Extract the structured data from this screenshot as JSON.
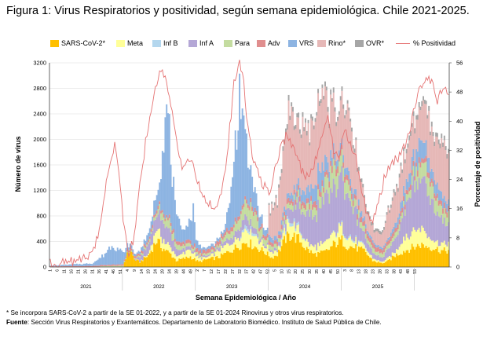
{
  "title": "Figura 1: Virus Respiratorios y positividad, según semana epidemiológica. Chile 2021-2025.",
  "legend": [
    {
      "key": "sars",
      "label": "SARS-CoV-2*",
      "color": "#ffc000"
    },
    {
      "key": "meta",
      "label": "Meta",
      "color": "#ffff99"
    },
    {
      "key": "infb",
      "label": "Inf B",
      "color": "#b4d7ee"
    },
    {
      "key": "infa",
      "label": "Inf A",
      "color": "#b4a7d6"
    },
    {
      "key": "para",
      "label": "Para",
      "color": "#c4dca0"
    },
    {
      "key": "adv",
      "label": "Adv",
      "color": "#e08e8e"
    },
    {
      "key": "vrs",
      "label": "VRS",
      "color": "#8db4e2"
    },
    {
      "key": "rino",
      "label": "Rino*",
      "color": "#e6b8b7"
    },
    {
      "key": "ovr",
      "label": "OVR*",
      "color": "#a6a6a6"
    },
    {
      "key": "pos",
      "label": "% Positividad",
      "color": "#e57373"
    }
  ],
  "notes": {
    "note1": "* Se incorpora SARS-CoV-2 a partir de la SE 01-2022, y a partir de la SE 01-2024 Rinovirus y otros virus respiratorios.",
    "source_label": "Fuente",
    "source_text": ": Sección Virus Respiratorios y Exantemáticos. Departamento de Laboratorio Biomédico. Instituto de Salud Pública de Chile."
  },
  "chart_data": {
    "type": "bar",
    "stacked": true,
    "xlabel": "Semana Epidemiológica / Año",
    "ylabel": "Número de virus",
    "y2label": "Porcentaje de positividad",
    "ylim": [
      0,
      3200
    ],
    "yticks": [
      0,
      400,
      800,
      1200,
      1600,
      2000,
      2400,
      2800,
      3200
    ],
    "y2lim": [
      0,
      56
    ],
    "y2ticks": [
      0,
      8,
      16,
      24,
      32,
      40,
      48,
      56
    ],
    "years": [
      "2021",
      "2022",
      "2023",
      "2024",
      "2025"
    ],
    "week_ticks": {
      "2021": [
        "1",
        "6",
        "11",
        "16",
        "21",
        "26",
        "31",
        "36",
        "41",
        "46",
        "51"
      ],
      "2022": [
        "4",
        "9",
        "14",
        "19",
        "24",
        "29",
        "34",
        "39",
        "44",
        "49"
      ],
      "2023": [
        "2",
        "7",
        "12",
        "17",
        "22",
        "27",
        "32",
        "37",
        "42",
        "47",
        "52"
      ],
      "2024": [
        "5",
        "10",
        "15",
        "20",
        "25",
        "30",
        "35",
        "40",
        "45",
        "50"
      ],
      "2025": [
        "3",
        "8",
        "13",
        "18",
        "23",
        "28",
        "33",
        "38",
        "43",
        "48",
        "53"
      ]
    },
    "series_order": [
      "sars",
      "meta",
      "infb",
      "infa",
      "para",
      "adv",
      "vrs",
      "rino",
      "ovr"
    ],
    "series_profiles": {
      "sars": [
        [
          0,
          0
        ],
        [
          52,
          0
        ],
        [
          54,
          150
        ],
        [
          57,
          280
        ],
        [
          60,
          120
        ],
        [
          64,
          80
        ],
        [
          70,
          180
        ],
        [
          76,
          420
        ],
        [
          80,
          300
        ],
        [
          86,
          200
        ],
        [
          90,
          100
        ],
        [
          100,
          160
        ],
        [
          106,
          80
        ],
        [
          112,
          120
        ],
        [
          120,
          150
        ],
        [
          124,
          200
        ],
        [
          132,
          300
        ],
        [
          140,
          400
        ],
        [
          146,
          320
        ],
        [
          152,
          250
        ],
        [
          158,
          150
        ],
        [
          162,
          200
        ],
        [
          168,
          450
        ],
        [
          172,
          500
        ],
        [
          178,
          420
        ],
        [
          182,
          300
        ],
        [
          188,
          200
        ],
        [
          194,
          220
        ],
        [
          198,
          260
        ],
        [
          202,
          350
        ],
        [
          208,
          420
        ],
        [
          212,
          330
        ],
        [
          218,
          300
        ],
        [
          224,
          250
        ],
        [
          230,
          100
        ],
        [
          236,
          60
        ],
        [
          240,
          80
        ],
        [
          246,
          180
        ],
        [
          252,
          250
        ],
        [
          258,
          300
        ],
        [
          264,
          350
        ],
        [
          270,
          320
        ],
        [
          276,
          280
        ],
        [
          280,
          250
        ],
        [
          284,
          260
        ]
      ],
      "meta": [
        [
          0,
          0
        ],
        [
          60,
          0
        ],
        [
          70,
          20
        ],
        [
          76,
          180
        ],
        [
          82,
          120
        ],
        [
          92,
          60
        ],
        [
          100,
          120
        ],
        [
          104,
          60
        ],
        [
          112,
          30
        ],
        [
          120,
          100
        ],
        [
          126,
          120
        ],
        [
          134,
          150
        ],
        [
          140,
          220
        ],
        [
          146,
          180
        ],
        [
          152,
          100
        ],
        [
          164,
          60
        ],
        [
          170,
          200
        ],
        [
          176,
          150
        ],
        [
          184,
          100
        ],
        [
          198,
          150
        ],
        [
          208,
          200
        ],
        [
          216,
          100
        ],
        [
          228,
          40
        ],
        [
          236,
          20
        ],
        [
          246,
          60
        ],
        [
          252,
          200
        ],
        [
          258,
          250
        ],
        [
          264,
          300
        ],
        [
          270,
          150
        ],
        [
          276,
          100
        ],
        [
          284,
          120
        ]
      ],
      "infb": [
        [
          0,
          0
        ],
        [
          134,
          0
        ],
        [
          140,
          60
        ],
        [
          146,
          30
        ],
        [
          150,
          0
        ],
        [
          162,
          0
        ],
        [
          168,
          60
        ],
        [
          176,
          40
        ],
        [
          184,
          0
        ],
        [
          198,
          0
        ],
        [
          204,
          20
        ],
        [
          216,
          30
        ],
        [
          230,
          0
        ],
        [
          284,
          0
        ]
      ],
      "infa": [
        [
          0,
          0
        ],
        [
          60,
          0
        ],
        [
          64,
          60
        ],
        [
          70,
          140
        ],
        [
          76,
          250
        ],
        [
          80,
          320
        ],
        [
          84,
          260
        ],
        [
          90,
          100
        ],
        [
          98,
          60
        ],
        [
          104,
          30
        ],
        [
          114,
          20
        ],
        [
          122,
          60
        ],
        [
          130,
          100
        ],
        [
          136,
          140
        ],
        [
          140,
          160
        ],
        [
          146,
          80
        ],
        [
          152,
          30
        ],
        [
          162,
          40
        ],
        [
          168,
          100
        ],
        [
          174,
          260
        ],
        [
          178,
          350
        ],
        [
          184,
          420
        ],
        [
          192,
          600
        ],
        [
          198,
          650
        ],
        [
          204,
          700
        ],
        [
          208,
          800
        ],
        [
          214,
          600
        ],
        [
          222,
          200
        ],
        [
          230,
          80
        ],
        [
          236,
          60
        ],
        [
          240,
          120
        ],
        [
          248,
          250
        ],
        [
          254,
          500
        ],
        [
          260,
          700
        ],
        [
          264,
          850
        ],
        [
          270,
          700
        ],
        [
          276,
          450
        ],
        [
          280,
          350
        ],
        [
          284,
          300
        ]
      ],
      "para": [
        [
          0,
          0
        ],
        [
          30,
          0
        ],
        [
          40,
          15
        ],
        [
          52,
          20
        ],
        [
          60,
          20
        ],
        [
          70,
          30
        ],
        [
          76,
          60
        ],
        [
          84,
          140
        ],
        [
          90,
          80
        ],
        [
          100,
          40
        ],
        [
          110,
          30
        ],
        [
          120,
          40
        ],
        [
          130,
          120
        ],
        [
          138,
          200
        ],
        [
          144,
          260
        ],
        [
          150,
          120
        ],
        [
          158,
          60
        ],
        [
          166,
          60
        ],
        [
          172,
          80
        ],
        [
          178,
          100
        ],
        [
          186,
          120
        ],
        [
          192,
          180
        ],
        [
          200,
          300
        ],
        [
          208,
          250
        ],
        [
          216,
          120
        ],
        [
          224,
          80
        ],
        [
          232,
          60
        ],
        [
          240,
          60
        ],
        [
          248,
          80
        ],
        [
          256,
          100
        ],
        [
          262,
          200
        ],
        [
          268,
          280
        ],
        [
          276,
          200
        ],
        [
          284,
          150
        ]
      ],
      "adv": [
        [
          0,
          10
        ],
        [
          50,
          20
        ],
        [
          60,
          30
        ],
        [
          80,
          50
        ],
        [
          100,
          50
        ],
        [
          120,
          60
        ],
        [
          140,
          60
        ],
        [
          160,
          60
        ],
        [
          180,
          80
        ],
        [
          200,
          100
        ],
        [
          220,
          80
        ],
        [
          240,
          60
        ],
        [
          260,
          80
        ],
        [
          284,
          80
        ]
      ],
      "vrs": [
        [
          0,
          10
        ],
        [
          30,
          40
        ],
        [
          38,
          150
        ],
        [
          44,
          320
        ],
        [
          50,
          220
        ],
        [
          56,
          60
        ],
        [
          62,
          30
        ],
        [
          72,
          120
        ],
        [
          78,
          350
        ],
        [
          82,
          1500
        ],
        [
          84,
          1650
        ],
        [
          86,
          1000
        ],
        [
          90,
          350
        ],
        [
          96,
          200
        ],
        [
          100,
          300
        ],
        [
          102,
          650
        ],
        [
          104,
          120
        ],
        [
          110,
          40
        ],
        [
          118,
          40
        ],
        [
          124,
          50
        ],
        [
          128,
          400
        ],
        [
          132,
          1200
        ],
        [
          135,
          1850
        ],
        [
          138,
          1300
        ],
        [
          142,
          500
        ],
        [
          148,
          200
        ],
        [
          152,
          100
        ],
        [
          160,
          60
        ],
        [
          170,
          80
        ],
        [
          176,
          100
        ],
        [
          180,
          150
        ],
        [
          184,
          200
        ],
        [
          188,
          250
        ],
        [
          194,
          300
        ],
        [
          200,
          150
        ],
        [
          206,
          100
        ],
        [
          212,
          120
        ],
        [
          220,
          80
        ],
        [
          230,
          40
        ],
        [
          240,
          30
        ],
        [
          246,
          80
        ],
        [
          256,
          180
        ],
        [
          264,
          280
        ],
        [
          270,
          200
        ],
        [
          278,
          150
        ],
        [
          284,
          120
        ]
      ],
      "rino": [
        [
          0,
          0
        ],
        [
          155,
          0
        ],
        [
          156,
          400
        ],
        [
          160,
          500
        ],
        [
          166,
          800
        ],
        [
          170,
          1200
        ],
        [
          174,
          1100
        ],
        [
          176,
          1000
        ],
        [
          182,
          950
        ],
        [
          186,
          900
        ],
        [
          190,
          1100
        ],
        [
          194,
          1050
        ],
        [
          198,
          900
        ],
        [
          202,
          700
        ],
        [
          206,
          650
        ],
        [
          210,
          850
        ],
        [
          214,
          800
        ],
        [
          218,
          650
        ],
        [
          222,
          450
        ],
        [
          226,
          250
        ],
        [
          232,
          180
        ],
        [
          238,
          250
        ],
        [
          242,
          450
        ],
        [
          248,
          500
        ],
        [
          254,
          450
        ],
        [
          260,
          550
        ],
        [
          264,
          600
        ],
        [
          268,
          650
        ],
        [
          272,
          600
        ],
        [
          278,
          650
        ],
        [
          282,
          800
        ],
        [
          284,
          650
        ]
      ],
      "ovr": [
        [
          0,
          0
        ],
        [
          155,
          0
        ],
        [
          156,
          30
        ],
        [
          170,
          80
        ],
        [
          184,
          60
        ],
        [
          200,
          70
        ],
        [
          220,
          50
        ],
        [
          240,
          40
        ],
        [
          260,
          70
        ],
        [
          284,
          60
        ]
      ]
    },
    "positivity_profile": [
      [
        0,
        1
      ],
      [
        10,
        1
      ],
      [
        20,
        2
      ],
      [
        28,
        3
      ],
      [
        34,
        8
      ],
      [
        38,
        18
      ],
      [
        42,
        28
      ],
      [
        46,
        34
      ],
      [
        50,
        22
      ],
      [
        53,
        10
      ],
      [
        56,
        4
      ],
      [
        60,
        8
      ],
      [
        64,
        22
      ],
      [
        68,
        34
      ],
      [
        72,
        44
      ],
      [
        76,
        50
      ],
      [
        79,
        54
      ],
      [
        82,
        53
      ],
      [
        86,
        45
      ],
      [
        90,
        34
      ],
      [
        94,
        28
      ],
      [
        98,
        30
      ],
      [
        102,
        27
      ],
      [
        106,
        22
      ],
      [
        112,
        18
      ],
      [
        118,
        16
      ],
      [
        124,
        24
      ],
      [
        128,
        38
      ],
      [
        131,
        50
      ],
      [
        134,
        56
      ],
      [
        137,
        54
      ],
      [
        140,
        42
      ],
      [
        144,
        30
      ],
      [
        150,
        24
      ],
      [
        156,
        20
      ],
      [
        160,
        26
      ],
      [
        164,
        32
      ],
      [
        168,
        36
      ],
      [
        172,
        34
      ],
      [
        176,
        30
      ],
      [
        180,
        26
      ],
      [
        184,
        24
      ],
      [
        188,
        28
      ],
      [
        192,
        34
      ],
      [
        196,
        40
      ],
      [
        198,
        42
      ],
      [
        202,
        32
      ],
      [
        206,
        30
      ],
      [
        210,
        38
      ],
      [
        214,
        34
      ],
      [
        218,
        30
      ],
      [
        222,
        22
      ],
      [
        226,
        14
      ],
      [
        230,
        12
      ],
      [
        234,
        18
      ],
      [
        238,
        24
      ],
      [
        242,
        28
      ],
      [
        248,
        30
      ],
      [
        254,
        34
      ],
      [
        260,
        44
      ],
      [
        264,
        50
      ],
      [
        268,
        52
      ],
      [
        272,
        50
      ],
      [
        276,
        46
      ],
      [
        280,
        48
      ],
      [
        284,
        48
      ]
    ]
  }
}
